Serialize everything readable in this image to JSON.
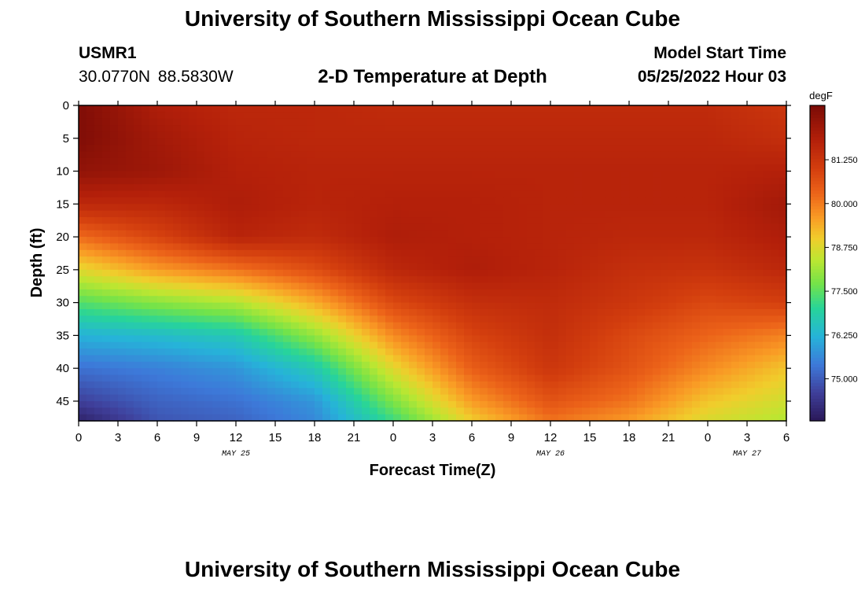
{
  "header": {
    "main_title": "University of Southern Mississippi Ocean Cube",
    "station_id": "USMR1",
    "station_coords": "30.0770N  88.5830W",
    "plot_title": "2-D Temperature at Depth",
    "model_start_label": "Model Start Time",
    "model_start_value": "05/25/2022 Hour 03"
  },
  "footer": {
    "title": "University of Southern Mississippi Ocean Cube"
  },
  "chart_data": {
    "type": "heatmap",
    "title": "2-D Temperature at Depth",
    "xlabel": "Forecast Time(Z)",
    "ylabel": "Depth (ft)",
    "x_hours_range": [
      0,
      54
    ],
    "x_tick_labels": [
      "0",
      "3",
      "6",
      "9",
      "12",
      "15",
      "18",
      "21",
      "0",
      "3",
      "6",
      "9",
      "12",
      "15",
      "18",
      "21",
      "0",
      "3",
      "6"
    ],
    "date_labels": [
      {
        "hour": 12,
        "text": "MAY 25"
      },
      {
        "hour": 36,
        "text": "MAY 26"
      },
      {
        "hour": 51,
        "text": "MAY 27"
      }
    ],
    "y_range": [
      0,
      48
    ],
    "y_tick_labels": [
      "0",
      "5",
      "10",
      "15",
      "20",
      "25",
      "30",
      "35",
      "40",
      "45"
    ],
    "colorbar": {
      "unit": "degF",
      "range": [
        73.8,
        82.8
      ],
      "tick_labels": [
        "81.250",
        "80.000",
        "78.750",
        "77.500",
        "76.250",
        "75.000"
      ],
      "stops": [
        {
          "value": 73.8,
          "color": "#2a1858"
        },
        {
          "value": 74.6,
          "color": "#3f3f9a"
        },
        {
          "value": 75.4,
          "color": "#3d79d9"
        },
        {
          "value": 76.2,
          "color": "#26b3d9"
        },
        {
          "value": 77.0,
          "color": "#27d49a"
        },
        {
          "value": 77.7,
          "color": "#73e34a"
        },
        {
          "value": 78.4,
          "color": "#bde631"
        },
        {
          "value": 79.0,
          "color": "#f0cd2c"
        },
        {
          "value": 79.6,
          "color": "#f99b25"
        },
        {
          "value": 80.3,
          "color": "#ec6319"
        },
        {
          "value": 81.0,
          "color": "#d33e0e"
        },
        {
          "value": 81.8,
          "color": "#b4200a"
        },
        {
          "value": 82.8,
          "color": "#7a0b06"
        }
      ]
    },
    "grid_depths_ft": [
      0,
      5,
      10,
      15,
      20,
      25,
      30,
      35,
      40,
      45,
      48
    ],
    "grid_hours": [
      0,
      6,
      12,
      18,
      24,
      30,
      36,
      42,
      48,
      54
    ],
    "temperature_grid_degF": [
      [
        82.7,
        81.9,
        81.6,
        81.6,
        81.5,
        81.5,
        81.5,
        81.5,
        81.5,
        81.2
      ],
      [
        82.7,
        82.1,
        81.7,
        81.6,
        81.6,
        81.6,
        81.6,
        81.6,
        81.6,
        81.4
      ],
      [
        82.4,
        82.2,
        81.8,
        81.7,
        81.7,
        81.7,
        81.7,
        81.7,
        81.7,
        81.8
      ],
      [
        81.6,
        81.6,
        81.9,
        81.7,
        81.8,
        81.8,
        81.7,
        81.7,
        81.7,
        82.1
      ],
      [
        80.2,
        80.9,
        81.7,
        81.5,
        81.9,
        81.8,
        81.7,
        81.6,
        81.6,
        81.9
      ],
      [
        78.8,
        79.6,
        80.1,
        80.7,
        81.6,
        81.9,
        81.7,
        81.4,
        81.3,
        81.6
      ],
      [
        77.4,
        77.9,
        78.3,
        79.4,
        80.8,
        81.4,
        81.5,
        81.2,
        80.8,
        81.0
      ],
      [
        76.2,
        76.4,
        76.7,
        78.0,
        79.8,
        80.9,
        81.4,
        80.8,
        80.3,
        79.9
      ],
      [
        75.3,
        75.5,
        75.8,
        76.7,
        78.8,
        80.4,
        81.2,
        80.6,
        79.8,
        79.1
      ],
      [
        74.6,
        75.1,
        75.3,
        75.8,
        77.8,
        79.6,
        80.6,
        80.1,
        79.1,
        78.6
      ],
      [
        74.0,
        74.9,
        75.1,
        75.6,
        77.2,
        79.0,
        80.1,
        79.6,
        78.7,
        78.3
      ]
    ]
  }
}
